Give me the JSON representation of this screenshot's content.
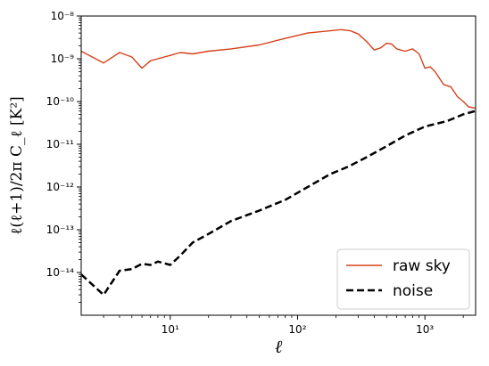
{
  "chart_data": {
    "type": "line",
    "xscale": "log",
    "yscale": "log",
    "xlim": [
      2,
      2500
    ],
    "ylim": [
      1e-15,
      1e-08
    ],
    "xlabel": "ℓ",
    "ylabel": "ℓ(ℓ+1)/2π C_ℓ [K²]",
    "x_ticks": [
      10,
      100,
      1000
    ],
    "x_tick_labels": [
      "10¹",
      "10²",
      "10³"
    ],
    "y_ticks": [
      1e-14,
      1e-13,
      1e-12,
      1e-11,
      1e-10,
      1e-09,
      1e-08
    ],
    "y_tick_labels": [
      "10⁻¹⁴",
      "10⁻¹³",
      "10⁻¹²",
      "10⁻¹¹",
      "10⁻¹⁰",
      "10⁻⁹",
      "10⁻⁸"
    ],
    "grid": false,
    "legend_position": "bottom-right",
    "series": [
      {
        "name": "raw sky",
        "color": "#d6401a",
        "style": "solid",
        "x": [
          2,
          3,
          4,
          5,
          6,
          7,
          8,
          10,
          12,
          15,
          20,
          30,
          50,
          80,
          120,
          180,
          220,
          260,
          300,
          350,
          400,
          450,
          500,
          550,
          600,
          700,
          800,
          900,
          1000,
          1100,
          1200,
          1400,
          1600,
          1800,
          2000,
          2200,
          2500
        ],
        "y": [
          1.5e-09,
          8e-10,
          1.4e-09,
          1.1e-09,
          6e-10,
          9e-10,
          1e-09,
          1.2e-09,
          1.4e-09,
          1.3e-09,
          1.5e-09,
          1.7e-09,
          2.1e-09,
          3e-09,
          4e-09,
          4.5e-09,
          4.8e-09,
          4.5e-09,
          3.8e-09,
          2.5e-09,
          1.6e-09,
          1.8e-09,
          2.3e-09,
          2.2e-09,
          1.7e-09,
          1.5e-09,
          1.7e-09,
          1.3e-09,
          6e-10,
          6.5e-10,
          5e-10,
          2.5e-10,
          2.2e-10,
          1.3e-10,
          1e-10,
          7.5e-11,
          7e-11
        ]
      },
      {
        "name": "noise",
        "color": "#000000",
        "style": "dashed",
        "x": [
          2,
          3,
          4,
          5,
          6,
          7,
          8,
          10,
          12,
          15,
          20,
          30,
          50,
          80,
          120,
          180,
          250,
          350,
          500,
          700,
          1000,
          1500,
          2000,
          2500
        ],
        "y": [
          9e-15,
          3e-15,
          1.1e-14,
          1.2e-14,
          1.6e-14,
          1.5e-14,
          1.8e-14,
          1.5e-14,
          2.5e-14,
          5e-14,
          8e-14,
          1.6e-13,
          2.8e-13,
          5e-13,
          1e-12,
          2e-12,
          3e-12,
          5e-12,
          9e-12,
          1.6e-11,
          2.6e-11,
          3.5e-11,
          5e-11,
          6e-11
        ]
      }
    ]
  }
}
